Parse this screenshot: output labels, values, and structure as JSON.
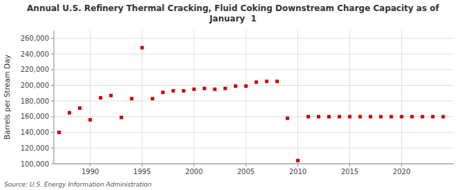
{
  "chart_data": {
    "type": "scatter",
    "title": "Annual U.S. Refinery Thermal Cracking, Fluid Coking Downstream Charge Capacity as of\nJanuary  1",
    "ylabel": "Barrels per Stream Day",
    "source": "Source: U.S. Energy Information Administration",
    "x": [
      1987,
      1988,
      1989,
      1990,
      1991,
      1992,
      1993,
      1994,
      1995,
      1996,
      1997,
      1998,
      1999,
      2000,
      2001,
      2002,
      2003,
      2004,
      2005,
      2006,
      2007,
      2008,
      2009,
      2010,
      2011,
      2012,
      2013,
      2014,
      2015,
      2016,
      2017,
      2018,
      2019,
      2020,
      2021,
      2022,
      2023,
      2024
    ],
    "values": [
      140000,
      165000,
      171000,
      156000,
      184000,
      187000,
      159000,
      183000,
      248000,
      183000,
      191000,
      193000,
      193000,
      195000,
      196000,
      195000,
      196000,
      199000,
      199000,
      204000,
      205000,
      205000,
      158000,
      104000,
      160000,
      160000,
      160000,
      160000,
      160000,
      160000,
      160000,
      160000,
      160000,
      160000,
      160000,
      160000,
      160000,
      160000
    ],
    "color": "#cc0000",
    "marker": "square",
    "xlim": [
      1986.5,
      2025
    ],
    "xticks": [
      1990,
      1995,
      2000,
      2005,
      2010,
      2015,
      2020
    ],
    "ylim": [
      100000,
      270000
    ],
    "yticks": [
      {
        "value": 100000,
        "label": "100,000"
      },
      {
        "value": 120000,
        "label": "120,000"
      },
      {
        "value": 140000,
        "label": "140,000"
      },
      {
        "value": 160000,
        "label": "160,000"
      },
      {
        "value": 180000,
        "label": "180,000"
      },
      {
        "value": 200000,
        "label": "200,000"
      },
      {
        "value": 220000,
        "label": "220,000"
      },
      {
        "value": 240000,
        "label": "240,000"
      },
      {
        "value": 260000,
        "label": "260,000"
      }
    ],
    "grid": true
  }
}
